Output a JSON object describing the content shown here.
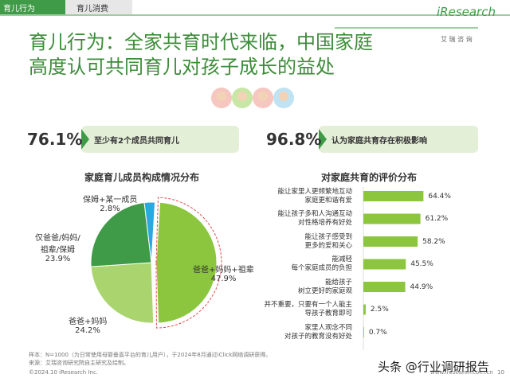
{
  "tabs": [
    "育儿行为",
    "育儿消费"
  ],
  "logo": {
    "brand": "iResearch",
    "sub": "艾 瑞 咨 询"
  },
  "title": [
    "育儿行为：全家共育时代来临，中国家庭",
    "高度认可共同育儿对孩子成长的益处"
  ],
  "stats": [
    {
      "value": "76.1%",
      "text": "至少有2个成员共同育儿"
    },
    {
      "value": "96.8%",
      "text": "认为家庭共育存在积极影响"
    }
  ],
  "chart_data": [
    {
      "type": "pie",
      "title": "家庭育儿成员构成情况分布",
      "categories": [
        "爸爸+妈妈+祖辈",
        "爸爸+妈妈",
        "仅爸爸/妈妈/\n祖辈/保姆",
        "保姆+某一成员"
      ],
      "values": [
        47.9,
        24.2,
        23.9,
        2.8
      ],
      "value_labels": [
        "47.9%",
        "24.2%",
        "23.9%",
        "2.8%"
      ],
      "colors": [
        "#8cc63f",
        "#a9d46e",
        "#3f9b47",
        "#2aa9df"
      ]
    },
    {
      "type": "bar",
      "title": "对家庭共育的评价分布",
      "categories": [
        "能让家里人更频繁地互动\n家庭更和谐有爱",
        "能让孩子多和人沟通互动\n对性格培养有好处",
        "能让孩子感受到\n更多的爱和关心",
        "能减轻\n每个家庭成员的负担",
        "能给孩子\n树立更好的家庭观",
        "并不重要，只要有一个人能主\n导孩子教育即可",
        "家里人观念不同\n对孩子的教育没有好处"
      ],
      "values": [
        64.4,
        61.2,
        58.2,
        45.5,
        44.9,
        2.5,
        0.7
      ],
      "value_labels": [
        "64.4%",
        "61.2%",
        "58.2%",
        "45.5%",
        "44.9%",
        "2.5%",
        "0.7%"
      ],
      "color": "#8cc63f"
    }
  ],
  "footer": {
    "note": "样本：N=1000（为日常使用母婴垂直平台的育儿用户），于2024年8月通过iClick网络调研获得。",
    "source": "来源：艾瑞咨询研究院自主研究及绘制。",
    "copyright": "©2024.10 iResearch Inc.",
    "url": "www.iresearch.com.cn",
    "page": "10",
    "watermark": "头条 @行业调研报告"
  }
}
